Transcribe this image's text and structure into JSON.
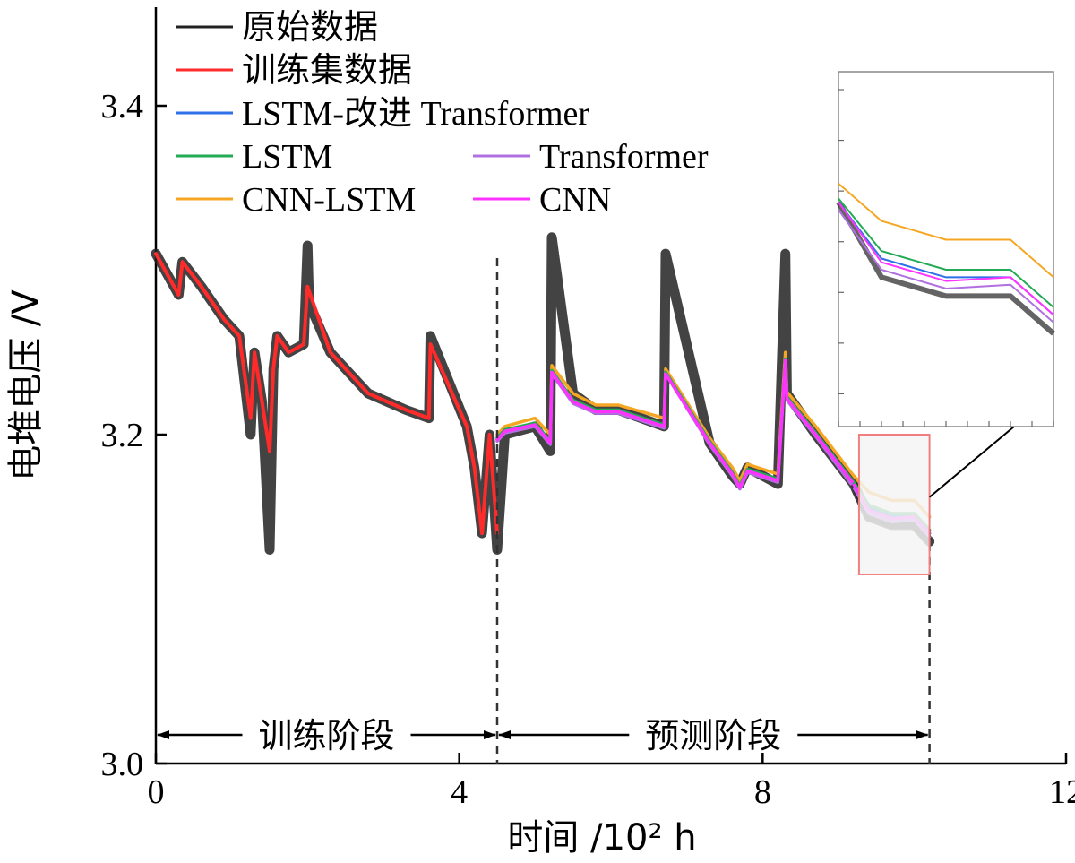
{
  "chart_data": {
    "type": "line",
    "xlabel": "时间 /10² h",
    "ylabel": "电堆电压 /V",
    "xlim": [
      0,
      12
    ],
    "ylim": [
      3.0,
      3.4
    ],
    "xticks": [
      "0",
      "4",
      "8",
      "12"
    ],
    "yticks": [
      "3.0",
      "3.2",
      "3.4"
    ],
    "legend": [
      {
        "name": "原始数据",
        "color": "#222222"
      },
      {
        "name": "训练集数据",
        "color": "#ff2a2a"
      },
      {
        "name": "LSTM-改进 Transformer",
        "color": "#2f6fe8"
      },
      {
        "name": "LSTM",
        "color": "#22aa55"
      },
      {
        "name": "Transformer",
        "color": "#b070e0"
      },
      {
        "name": "CNN-LSTM",
        "color": "#f5a623"
      },
      {
        "name": "CNN",
        "color": "#ff33ff"
      }
    ],
    "phases": [
      {
        "label": "训练阶段",
        "x_start": 0,
        "x_end": 4.5
      },
      {
        "label": "预测阶段",
        "x_start": 4.5,
        "x_end": 10.2
      }
    ],
    "split_x": 4.5,
    "end_x": 10.2,
    "zoom_box": {
      "x": [
        9.2,
        10.2
      ],
      "y": [
        3.115,
        3.2
      ]
    },
    "series": [
      {
        "name": "原始数据",
        "x": [
          0,
          0.3,
          0.35,
          0.6,
          0.9,
          1.1,
          1.25,
          1.3,
          1.4,
          1.5,
          1.55,
          1.6,
          1.75,
          1.95,
          2.0,
          2.02,
          2.3,
          2.8,
          3.3,
          3.6,
          3.62,
          4.1,
          4.2,
          4.3,
          4.4,
          4.5,
          4.6,
          5.0,
          5.2,
          5.22,
          5.5,
          5.8,
          6.1,
          6.7,
          6.72,
          7.3,
          7.6,
          7.7,
          7.8,
          8.2,
          8.3,
          8.32,
          8.7,
          9.2,
          9.4,
          9.7,
          10.0,
          10.2
        ],
        "y": [
          3.31,
          3.285,
          3.305,
          3.29,
          3.27,
          3.26,
          3.2,
          3.25,
          3.22,
          3.13,
          3.24,
          3.26,
          3.25,
          3.255,
          3.315,
          3.28,
          3.25,
          3.225,
          3.215,
          3.21,
          3.26,
          3.205,
          3.18,
          3.14,
          3.2,
          3.13,
          3.2,
          3.205,
          3.19,
          3.32,
          3.225,
          3.215,
          3.215,
          3.205,
          3.31,
          3.195,
          3.175,
          3.17,
          3.18,
          3.17,
          3.31,
          3.225,
          3.2,
          3.17,
          3.15,
          3.145,
          3.145,
          3.135
        ]
      },
      {
        "name": "训练集数据",
        "x": [
          0,
          0.3,
          0.35,
          0.6,
          0.9,
          1.1,
          1.25,
          1.3,
          1.4,
          1.5,
          1.55,
          1.6,
          1.75,
          1.95,
          2.0,
          2.3,
          2.8,
          3.3,
          3.6,
          3.62,
          4.1,
          4.2,
          4.3,
          4.4,
          4.5
        ],
        "y": [
          3.31,
          3.285,
          3.305,
          3.29,
          3.27,
          3.26,
          3.21,
          3.25,
          3.22,
          3.19,
          3.24,
          3.26,
          3.25,
          3.255,
          3.29,
          3.25,
          3.225,
          3.215,
          3.21,
          3.255,
          3.205,
          3.18,
          3.14,
          3.2,
          3.14
        ]
      },
      {
        "name": "CNN-LSTM",
        "x": [
          4.5,
          4.6,
          5.0,
          5.2,
          5.22,
          5.5,
          5.8,
          6.1,
          6.7,
          6.72,
          7.3,
          7.6,
          7.7,
          7.8,
          8.2,
          8.3,
          8.32,
          8.7,
          9.2,
          9.4,
          9.7,
          10.0,
          10.2
        ],
        "y": [
          3.2,
          3.205,
          3.21,
          3.2,
          3.242,
          3.225,
          3.218,
          3.218,
          3.21,
          3.24,
          3.198,
          3.18,
          3.172,
          3.182,
          3.176,
          3.25,
          3.226,
          3.205,
          3.175,
          3.165,
          3.16,
          3.16,
          3.15
        ]
      },
      {
        "name": "LSTM-改进 Transformer",
        "x": [
          4.5,
          4.6,
          5.0,
          5.2,
          5.22,
          5.5,
          5.8,
          6.1,
          6.7,
          6.72,
          7.3,
          7.6,
          7.7,
          7.8,
          8.2,
          8.3,
          8.32,
          8.7,
          9.2,
          9.4,
          9.7,
          10.0,
          10.2
        ],
        "y": [
          3.197,
          3.202,
          3.206,
          3.195,
          3.238,
          3.22,
          3.214,
          3.214,
          3.205,
          3.238,
          3.195,
          3.176,
          3.168,
          3.178,
          3.172,
          3.245,
          3.222,
          3.2,
          3.17,
          3.155,
          3.15,
          3.15,
          3.14
        ]
      },
      {
        "name": "LSTM",
        "x": [
          4.5,
          4.6,
          5.0,
          5.2,
          5.22,
          5.5,
          5.8,
          6.1,
          6.7,
          6.72,
          7.3,
          7.6,
          7.7,
          7.8,
          8.2,
          8.3,
          8.32,
          8.7,
          9.2,
          9.4,
          9.7,
          10.0,
          10.2
        ],
        "y": [
          3.198,
          3.203,
          3.207,
          3.196,
          3.239,
          3.221,
          3.215,
          3.215,
          3.206,
          3.238,
          3.196,
          3.177,
          3.169,
          3.179,
          3.173,
          3.246,
          3.223,
          3.201,
          3.171,
          3.157,
          3.152,
          3.152,
          3.142
        ]
      },
      {
        "name": "Transformer",
        "x": [
          4.5,
          4.6,
          5.0,
          5.2,
          5.22,
          5.5,
          5.8,
          6.1,
          6.7,
          6.72,
          7.3,
          7.6,
          7.7,
          7.8,
          8.2,
          8.3,
          8.32,
          8.7,
          9.2,
          9.4,
          9.7,
          10.0,
          10.2
        ],
        "y": [
          3.196,
          3.201,
          3.205,
          3.194,
          3.237,
          3.219,
          3.213,
          3.213,
          3.204,
          3.237,
          3.194,
          3.175,
          3.167,
          3.177,
          3.171,
          3.244,
          3.221,
          3.199,
          3.168,
          3.152,
          3.147,
          3.148,
          3.138
        ]
      },
      {
        "name": "CNN",
        "x": [
          4.5,
          4.6,
          5.0,
          5.2,
          5.22,
          5.5,
          5.8,
          6.1,
          6.7,
          6.72,
          7.3,
          7.6,
          7.7,
          7.8,
          8.2,
          8.3,
          8.32,
          8.7,
          9.2,
          9.4,
          9.7,
          10.0,
          10.2
        ],
        "y": [
          3.197,
          3.202,
          3.206,
          3.195,
          3.238,
          3.22,
          3.214,
          3.214,
          3.205,
          3.237,
          3.195,
          3.176,
          3.168,
          3.178,
          3.172,
          3.245,
          3.222,
          3.2,
          3.17,
          3.154,
          3.149,
          3.15,
          3.14
        ]
      }
    ]
  }
}
